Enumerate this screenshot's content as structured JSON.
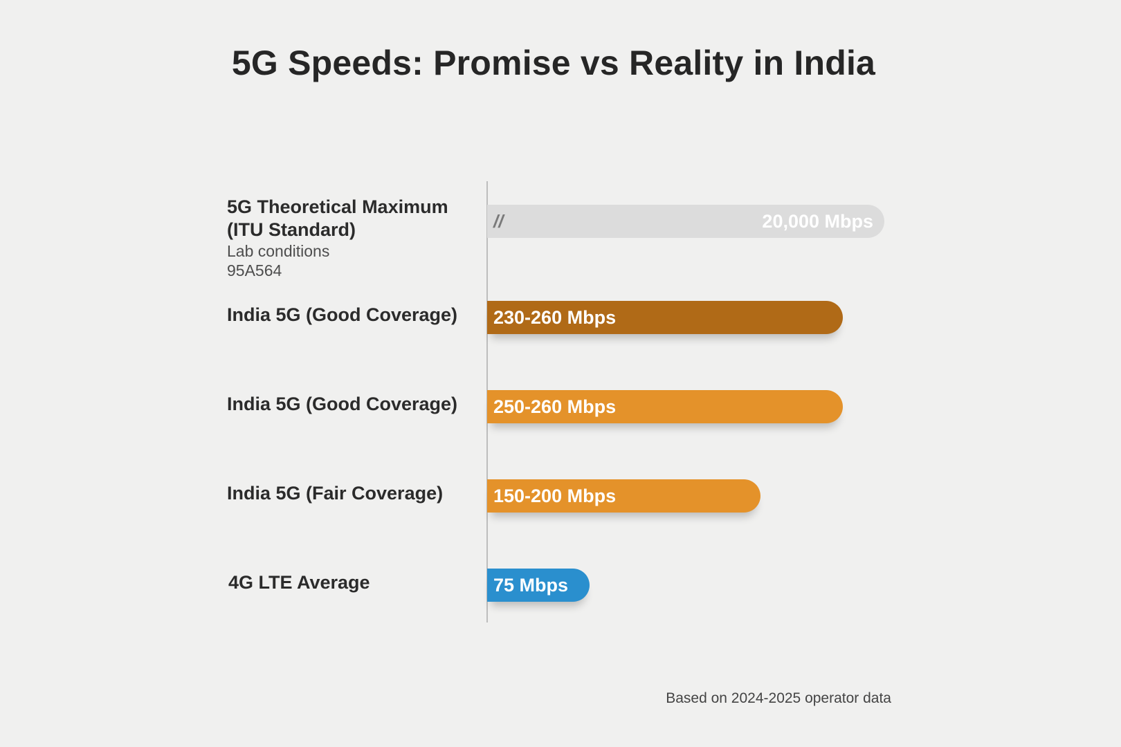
{
  "chart_data": {
    "type": "bar",
    "orientation": "horizontal",
    "title": "5G Speeds: Promise vs Reality in India",
    "categories": [
      "5G Theoretical Maximum (ITU Standard)",
      "India 5G (Good Coverage)",
      "India 5G (Good Coverage)",
      "India 5G (Fair Coverage)",
      "4G LTE Average"
    ],
    "bars": [
      {
        "label_lines": [
          "5G Theoretical Maximum",
          "(ITU Standard)"
        ],
        "sub_lines": [
          "Lab conditions",
          "95A564"
        ],
        "value_label": "20,000 Mbps",
        "value": 20000,
        "axis_break": true,
        "break_mark": "//",
        "color": "#dcdcdc"
      },
      {
        "label_lines": [
          "India 5G (Good Coverage)"
        ],
        "sub_lines": [],
        "value_label": "230-260 Mbps",
        "value": [
          230,
          260
        ],
        "color": "#b06a17"
      },
      {
        "label_lines": [
          "India 5G (Good Coverage)"
        ],
        "sub_lines": [],
        "value_label": "250-260 Mbps",
        "value": [
          250,
          260
        ],
        "color": "#e4922a"
      },
      {
        "label_lines": [
          "India 5G (Fair Coverage)"
        ],
        "sub_lines": [],
        "value_label": "150-200 Mbps",
        "value": [
          150,
          200
        ],
        "color": "#e4922a"
      },
      {
        "label_lines": [
          "4G LTE Average"
        ],
        "sub_lines": [],
        "value_label": "75 Mbps",
        "value": 75,
        "color": "#2a8fce"
      }
    ],
    "units": "Mbps",
    "grid": false,
    "legend": "none"
  },
  "footer": {
    "source": "Based on 2024-2025 operator data"
  }
}
